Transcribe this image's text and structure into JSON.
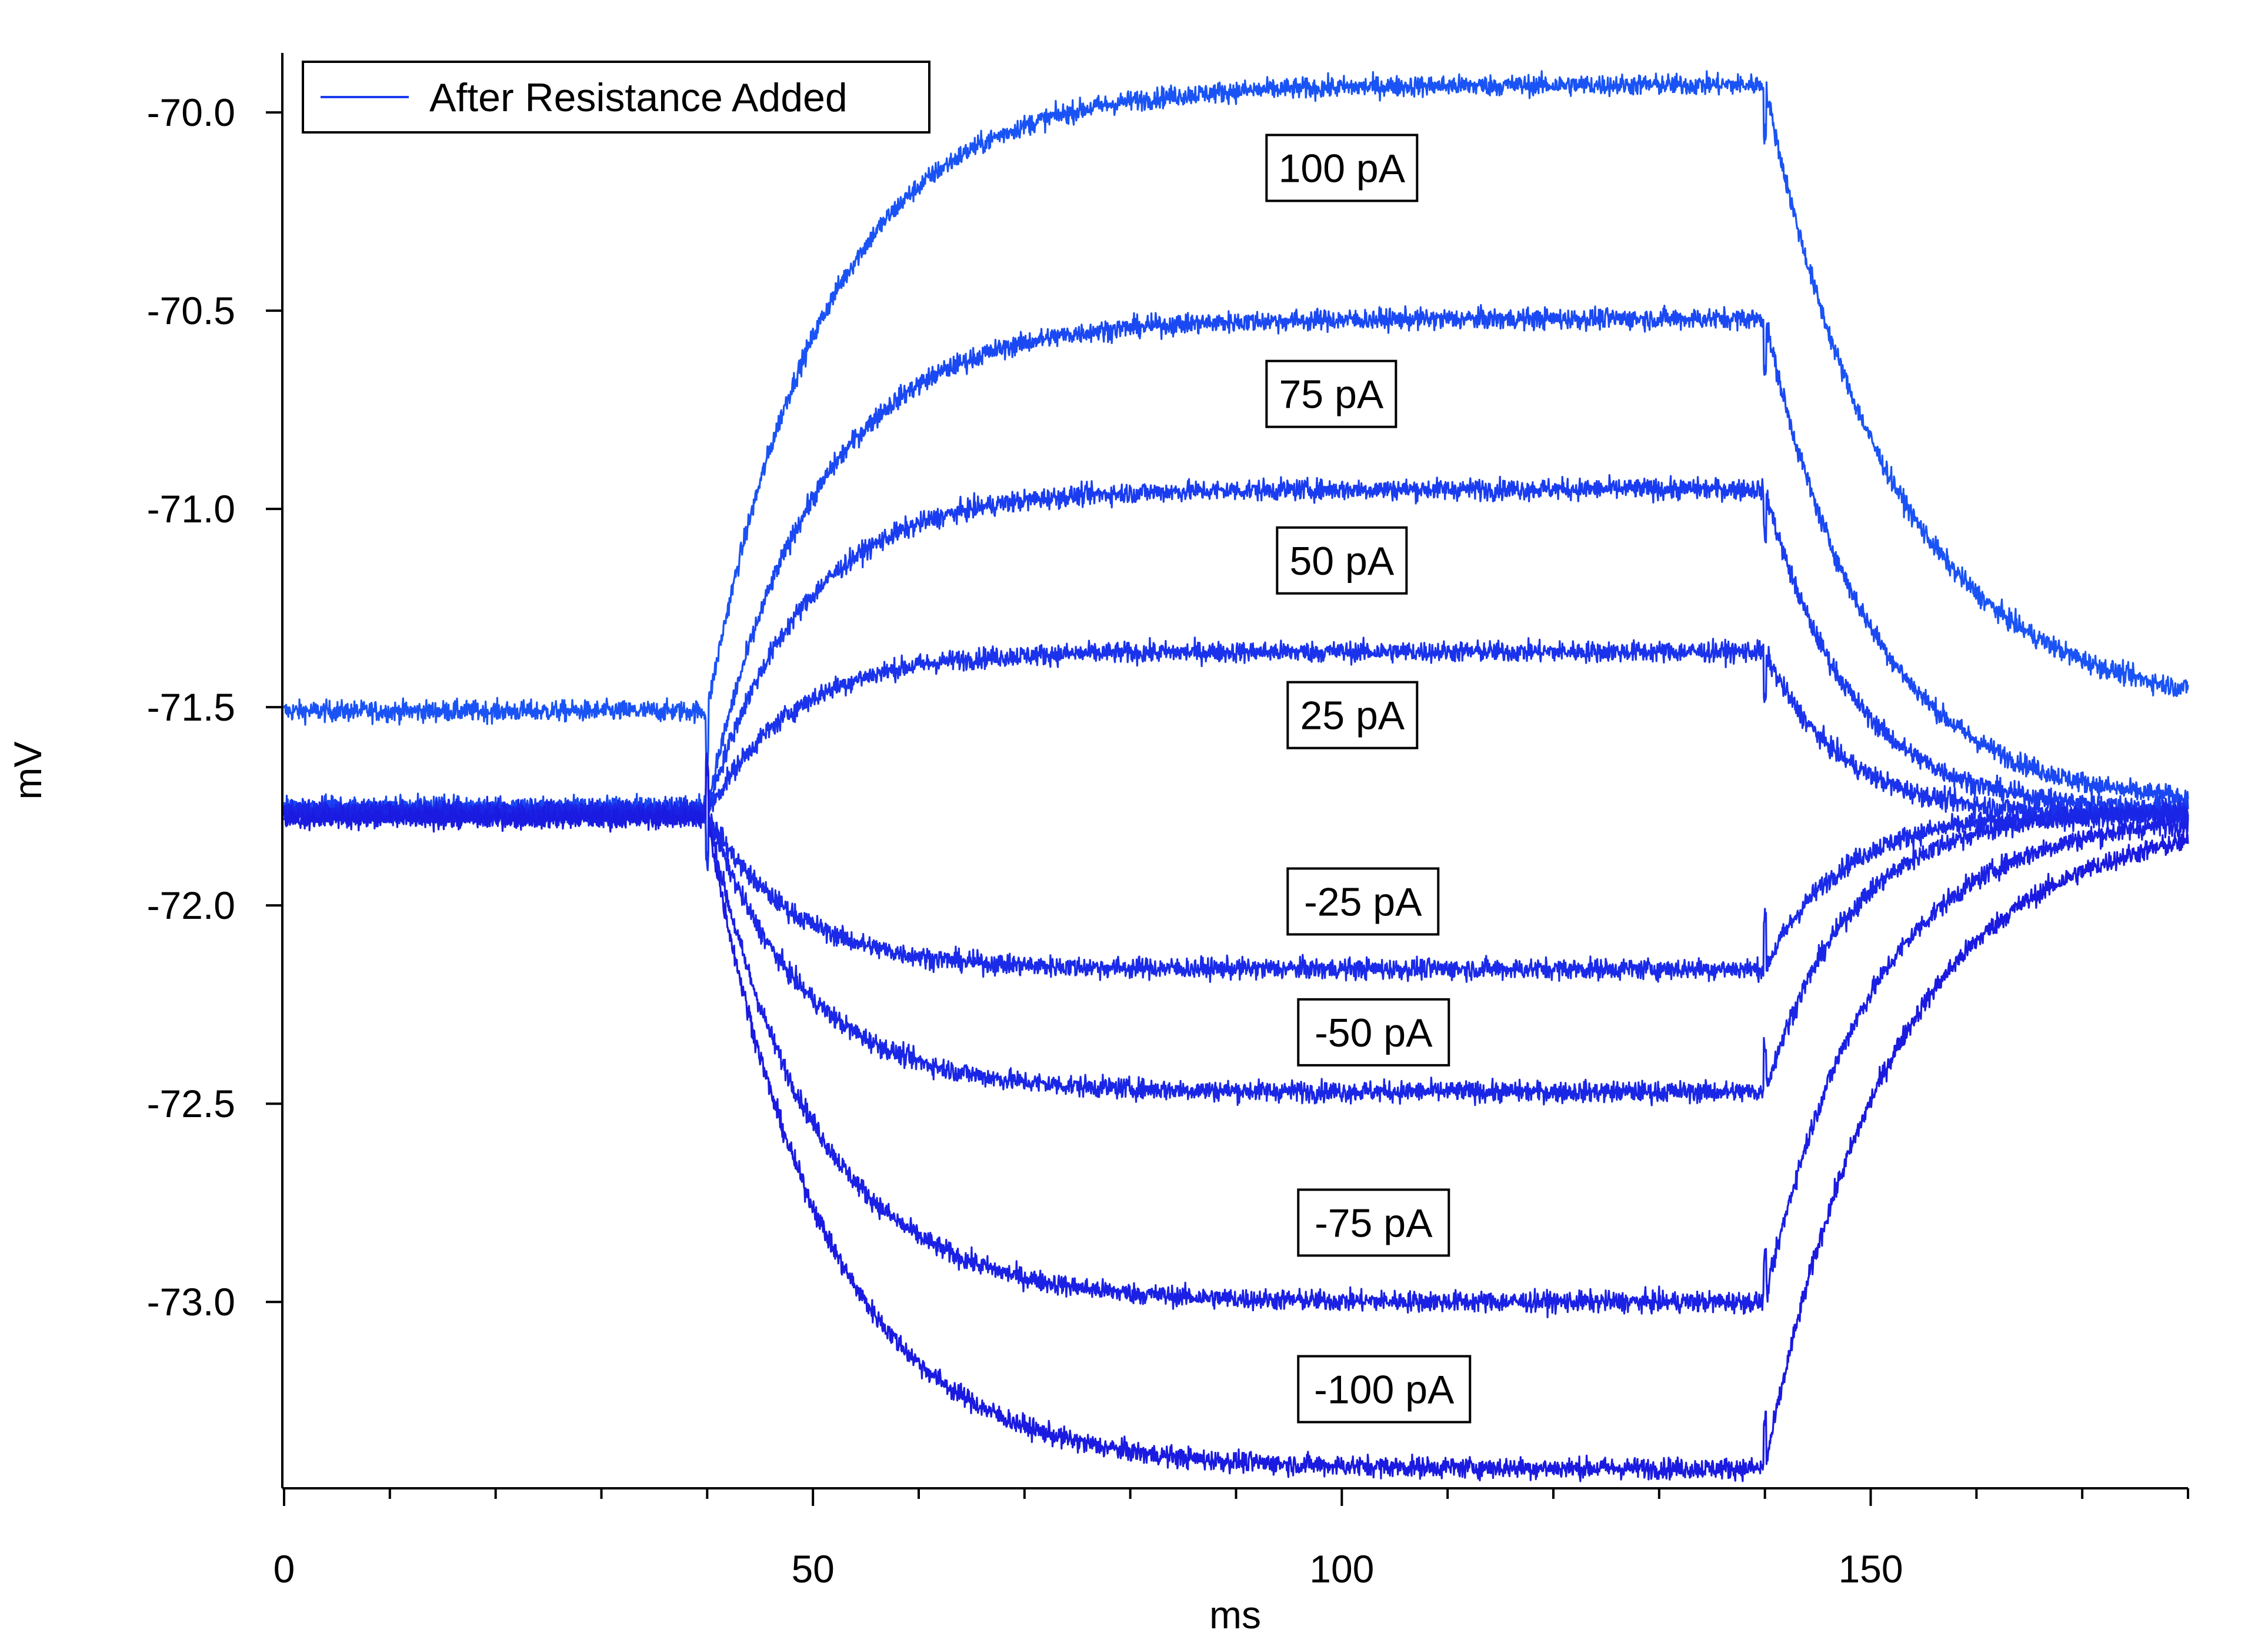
{
  "chart_data": {
    "type": "line",
    "title": "",
    "xlabel": "ms",
    "ylabel": "mV",
    "xlim": [
      0,
      180
    ],
    "ylim": [
      -73.47,
      -69.85
    ],
    "x_ticks": [
      0,
      50,
      100,
      150
    ],
    "x_tick_labels": [
      "0",
      "50",
      "100",
      "150"
    ],
    "y_ticks": [
      -70.0,
      -70.5,
      -71.0,
      -71.5,
      -72.0,
      -72.5,
      -73.0
    ],
    "y_tick_labels": [
      "-70.0",
      "-70.5",
      "-71.0",
      "-71.5",
      "-72.0",
      "-72.5",
      "-73.0"
    ],
    "grid": false,
    "legend": {
      "position": "top-left",
      "entries": [
        {
          "name": "After Resistance Added",
          "color": "#1a3cf0"
        }
      ]
    },
    "stimulus": {
      "on_ms": 40,
      "off_ms": 140
    },
    "series": [
      {
        "label": "100 pA",
        "baseline": -71.51,
        "plateau": -69.93,
        "tau_on": 11,
        "tau_off": 12,
        "noise": 0.025,
        "color": "#1a53f5",
        "label_x": 100,
        "label_y": -70.14
      },
      {
        "label": "75 pA",
        "baseline": -71.75,
        "plateau": -70.52,
        "tau_on": 10,
        "tau_off": 10,
        "noise": 0.025,
        "color": "#1a48f2",
        "label_x": 99,
        "label_y": -70.71
      },
      {
        "label": "50 pA",
        "baseline": -71.76,
        "plateau": -70.95,
        "tau_on": 9,
        "tau_off": 8,
        "noise": 0.025,
        "color": "#1a3cf0",
        "label_x": 100,
        "label_y": -71.13
      },
      {
        "label": "25 pA",
        "baseline": -71.77,
        "plateau": -71.36,
        "tau_on": 8,
        "tau_off": 7,
        "noise": 0.025,
        "color": "#1a32ec",
        "label_x": 101,
        "label_y": -71.52
      },
      {
        "label": "-25 pA",
        "baseline": -71.77,
        "plateau": -72.16,
        "tau_on": 8,
        "tau_off": 7,
        "noise": 0.025,
        "color": "#1a2ae8",
        "label_x": 102,
        "label_y": -71.99
      },
      {
        "label": "-50 pA",
        "baseline": -71.76,
        "plateau": -72.47,
        "tau_on": 9,
        "tau_off": 8,
        "noise": 0.025,
        "color": "#1a26e6",
        "label_x": 103,
        "label_y": -72.32
      },
      {
        "label": "-75 pA",
        "baseline": -71.77,
        "plateau": -73.0,
        "tau_on": 10,
        "tau_off": 10,
        "noise": 0.025,
        "color": "#1a20e4",
        "label_x": 103,
        "label_y": -72.8
      },
      {
        "label": "-100 pA",
        "baseline": -71.78,
        "plateau": -73.42,
        "tau_on": 11,
        "tau_off": 12,
        "noise": 0.025,
        "color": "#1a1ae0",
        "label_x": 104,
        "label_y": -73.22
      }
    ]
  }
}
